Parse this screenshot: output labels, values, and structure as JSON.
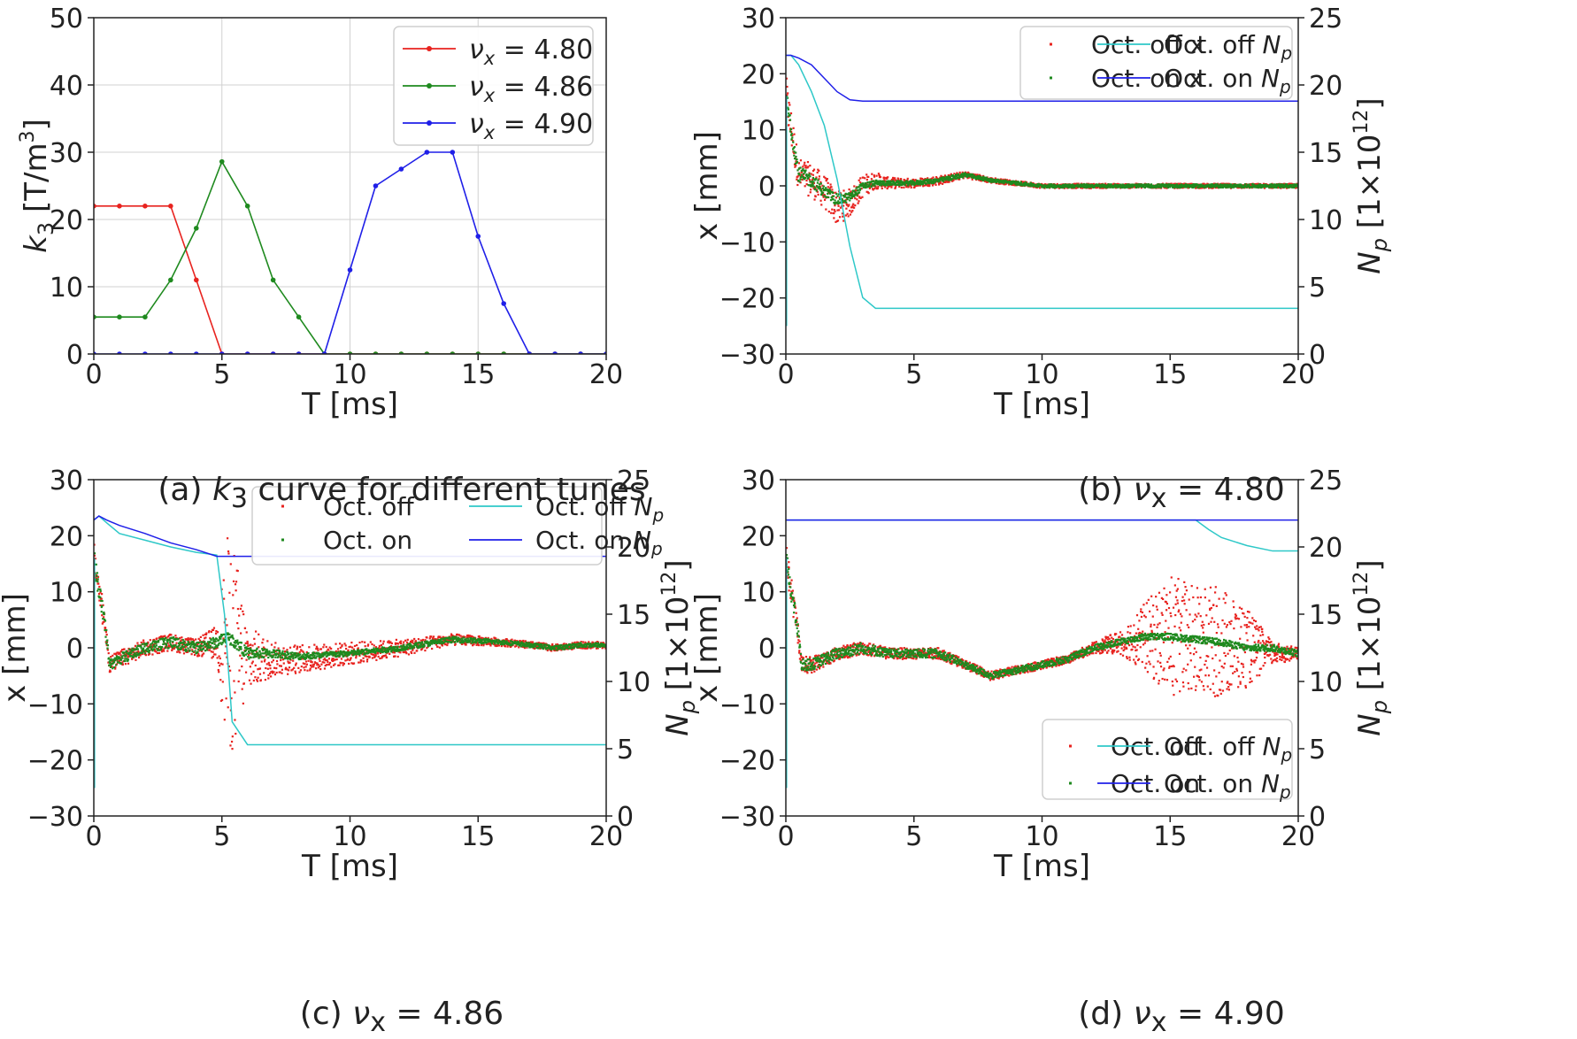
{
  "chart_data": [
    {
      "type": "line",
      "caption": {
        "prefix": "(a) ",
        "sym": "k",
        "sub": "3",
        "rest": " curve for different tunes"
      },
      "xlabel": "T [ms]",
      "ylabel": {
        "sym": "k",
        "sub": "3",
        "unit": " [T/m",
        "sup": "3",
        "close": "]"
      },
      "xlim": [
        0,
        20
      ],
      "ylim": [
        0,
        50
      ],
      "xticks": [
        0,
        5,
        10,
        15,
        20
      ],
      "yticks": [
        0,
        10,
        20,
        30,
        40,
        50
      ],
      "grid": true,
      "legend": "top-right",
      "series": [
        {
          "name": "ν_x = 4.80",
          "color": "#e8231f",
          "x": [
            0,
            1,
            2,
            3,
            4,
            5,
            6,
            7,
            8,
            9,
            10,
            11,
            12,
            13,
            14,
            15,
            16,
            17,
            18,
            19,
            20
          ],
          "y": [
            22,
            22,
            22,
            22,
            11,
            0,
            0,
            0,
            0,
            0,
            0,
            0,
            0,
            0,
            0,
            0,
            0,
            0,
            0,
            0,
            0
          ]
        },
        {
          "name": "ν_x = 4.86",
          "color": "#1f8a1f",
          "x": [
            0,
            1,
            2,
            3,
            4,
            5,
            6,
            7,
            8,
            9,
            10,
            11,
            12,
            13,
            14,
            15,
            16,
            17,
            18,
            19,
            20
          ],
          "y": [
            5.5,
            5.5,
            5.5,
            11,
            18.7,
            28.6,
            22,
            11,
            5.5,
            0,
            0,
            0,
            0,
            0,
            0,
            0,
            0,
            0,
            0,
            0,
            0
          ]
        },
        {
          "name": "ν_x = 4.90",
          "color": "#1f1fe8",
          "x": [
            0,
            1,
            2,
            3,
            4,
            5,
            6,
            7,
            8,
            9,
            10,
            11,
            12,
            13,
            14,
            15,
            16,
            17,
            18,
            19,
            20
          ],
          "y": [
            0,
            0,
            0,
            0,
            0,
            0,
            0,
            0,
            0,
            0,
            12.5,
            25,
            27.5,
            30,
            30,
            17.5,
            7.5,
            0,
            0,
            0,
            0
          ]
        }
      ]
    },
    {
      "type": "scatter+line",
      "caption": {
        "prefix": "(b) ",
        "sym": "ν",
        "sub": "x",
        "rest": " = 4.80"
      },
      "xlabel": "T [ms]",
      "ylabel": "x [mm]",
      "ylabel2": {
        "sym": "N",
        "sub": "p",
        "unit": " [1×10",
        "sup": "12",
        "close": "]"
      },
      "xlim": [
        0,
        20
      ],
      "ylim": [
        -30,
        30
      ],
      "y2lim": [
        0,
        25
      ],
      "xticks": [
        0,
        5,
        10,
        15,
        20
      ],
      "yticks": [
        -30,
        -20,
        -10,
        0,
        10,
        20,
        30
      ],
      "y2ticks": [
        0,
        5,
        10,
        15,
        20,
        25
      ],
      "legend": "top-right",
      "legend_entries": [
        {
          "label": "Oct. off x",
          "kind": "dot",
          "color": "#e8231f"
        },
        {
          "label": "Oct. on x",
          "kind": "dot",
          "color": "#1f8a1f"
        },
        {
          "label": "Oct. off ",
          "sub_label": "p",
          "kind": "line",
          "color": "#2ec8c8"
        },
        {
          "label": "Oct. on ",
          "sub_label": "p",
          "kind": "line",
          "color": "#1f1fe8"
        }
      ],
      "x_off": {
        "t": [
          0,
          0.5,
          1,
          1.5,
          2,
          2.5,
          3,
          3.5,
          4,
          5,
          6,
          7,
          8,
          9,
          10,
          12,
          14,
          16,
          18,
          20
        ],
        "x": [
          16,
          2,
          1,
          -1,
          -4,
          -3,
          0,
          1,
          0.5,
          0.5,
          1,
          2,
          1,
          0.5,
          0,
          0,
          0,
          0,
          0,
          0
        ],
        "spread": [
          4,
          3,
          3,
          3,
          3,
          2.5,
          2,
          1.5,
          1,
          0.8,
          0.8,
          0.6,
          0.5,
          0.4,
          0.4,
          0.4,
          0.4,
          0.4,
          0.4,
          0.4
        ]
      },
      "x_on": {
        "t": [
          0,
          0.5,
          1,
          1.5,
          2,
          2.5,
          3,
          3.5,
          4,
          5,
          6,
          7,
          8,
          9,
          10,
          12,
          14,
          16,
          18,
          20
        ],
        "x": [
          16,
          2,
          1,
          -1,
          -2.5,
          -2,
          0,
          0.5,
          0.5,
          0.5,
          1,
          2,
          1,
          0.5,
          0,
          0,
          0,
          0,
          0,
          0
        ],
        "spread": [
          2,
          1.5,
          1.2,
          1,
          1,
          0.8,
          0.6,
          0.5,
          0.4,
          0.4,
          0.4,
          0.4,
          0.3,
          0.3,
          0.3,
          0.3,
          0.3,
          0.3,
          0.3,
          0.3
        ]
      },
      "np_off": {
        "t": [
          0,
          0.2,
          0.5,
          1,
          1.5,
          2,
          2.5,
          3,
          3.5,
          20
        ],
        "n": [
          22.2,
          22.2,
          21.5,
          19.5,
          17,
          13,
          8,
          4.2,
          3.4,
          3.4
        ]
      },
      "np_on": {
        "t": [
          0,
          0.2,
          0.5,
          1,
          1.5,
          2,
          2.5,
          3,
          3.5,
          20
        ],
        "n": [
          22.2,
          22.2,
          22,
          21.5,
          20.5,
          19.5,
          18.9,
          18.8,
          18.8,
          18.8
        ]
      }
    },
    {
      "type": "scatter+line",
      "caption": {
        "prefix": "(c) ",
        "sym": "ν",
        "sub": "x",
        "rest": " = 4.86"
      },
      "xlabel": "T [ms]",
      "ylabel": "x [mm]",
      "ylabel2": {
        "sym": "N",
        "sub": "p",
        "unit": " [1×10",
        "sup": "12",
        "close": "]"
      },
      "xlim": [
        0,
        20
      ],
      "ylim": [
        -30,
        30
      ],
      "y2lim": [
        0,
        25
      ],
      "xticks": [
        0,
        5,
        10,
        15,
        20
      ],
      "yticks": [
        -30,
        -20,
        -10,
        0,
        10,
        20,
        30
      ],
      "y2ticks": [
        0,
        5,
        10,
        15,
        20,
        25
      ],
      "legend": "top-right",
      "legend_entries": [
        {
          "label": "Oct. off",
          "kind": "dot",
          "color": "#e8231f"
        },
        {
          "label": "Oct. on",
          "kind": "dot",
          "color": "#1f8a1f"
        },
        {
          "label": "Oct. off ",
          "sub_label": "p",
          "kind": "line",
          "color": "#2ec8c8"
        },
        {
          "label": "Oct. on ",
          "sub_label": "p",
          "kind": "line",
          "color": "#1f1fe8"
        }
      ],
      "x_off": {
        "t": [
          0,
          0.5,
          0.6,
          1,
          2,
          3,
          4,
          4.8,
          5.2,
          5.5,
          6,
          7,
          8,
          10,
          12,
          14,
          16,
          18,
          19,
          20
        ],
        "x": [
          16,
          2,
          -3,
          -2,
          0,
          1,
          0,
          1,
          0,
          0,
          -2,
          -2,
          -2,
          -1,
          0,
          1.5,
          1,
          0,
          0.5,
          0.5
        ],
        "spread": [
          3,
          2,
          1.5,
          1.5,
          1.5,
          1.5,
          1.5,
          3,
          20,
          18,
          6,
          3,
          2.5,
          2,
          1.5,
          1,
          0.7,
          0.6,
          0.6,
          0.6
        ]
      },
      "x_on": {
        "t": [
          0,
          0.5,
          0.6,
          1,
          2,
          3,
          4,
          4.8,
          5.2,
          5.5,
          6,
          7,
          8,
          10,
          12,
          14,
          16,
          18,
          19,
          20
        ],
        "x": [
          16,
          2,
          -3,
          -2,
          0,
          1,
          0,
          1,
          2,
          1,
          -1,
          -1,
          -1.5,
          -1,
          0,
          1.5,
          1,
          0,
          0.5,
          0.5
        ],
        "spread": [
          2,
          1.5,
          1,
          1,
          1,
          1,
          1,
          1,
          1,
          1,
          1,
          0.8,
          0.6,
          0.5,
          0.5,
          0.5,
          0.4,
          0.4,
          0.4,
          0.4
        ]
      },
      "np_off": {
        "t": [
          0,
          0.2,
          0.5,
          1,
          2,
          3,
          4,
          4.8,
          5.1,
          5.4,
          6,
          20
        ],
        "n": [
          22,
          22.3,
          21.8,
          21,
          20.5,
          20,
          19.6,
          19.4,
          15,
          7,
          5.3,
          5.3
        ]
      },
      "np_on": {
        "t": [
          0,
          0.2,
          0.5,
          1,
          2,
          3,
          4,
          4.8,
          5.2,
          20
        ],
        "n": [
          22,
          22.3,
          22,
          21.6,
          21,
          20.3,
          19.8,
          19.3,
          19.3,
          19.3
        ]
      }
    },
    {
      "type": "scatter+line",
      "caption": {
        "prefix": "(d) ",
        "sym": "ν",
        "sub": "x",
        "rest": " = 4.90"
      },
      "xlabel": "T [ms]",
      "ylabel": "x [mm]",
      "ylabel2": {
        "sym": "N",
        "sub": "p",
        "unit": " [1×10",
        "sup": "12",
        "close": "]"
      },
      "xlim": [
        0,
        20
      ],
      "ylim": [
        -30,
        30
      ],
      "y2lim": [
        0,
        25
      ],
      "xticks": [
        0,
        5,
        10,
        15,
        20
      ],
      "yticks": [
        -30,
        -20,
        -10,
        0,
        10,
        20,
        30
      ],
      "y2ticks": [
        0,
        5,
        10,
        15,
        20,
        25
      ],
      "legend": "bottom-right",
      "legend_entries": [
        {
          "label": "Oct. off",
          "kind": "dot",
          "color": "#e8231f"
        },
        {
          "label": "Oct. on",
          "kind": "dot",
          "color": "#1f8a1f"
        },
        {
          "label": "Oct. off ",
          "sub_label": "p",
          "kind": "line",
          "color": "#2ec8c8"
        },
        {
          "label": "Oct. on ",
          "sub_label": "p",
          "kind": "line",
          "color": "#1f1fe8"
        }
      ],
      "x_off": {
        "t": [
          0,
          0.5,
          0.6,
          1,
          2,
          3,
          4,
          5,
          6,
          7,
          8,
          9,
          10,
          11,
          12,
          13,
          14,
          15,
          16,
          17,
          18,
          19,
          20
        ],
        "x": [
          16,
          2,
          -3,
          -3,
          -1,
          0,
          -1,
          -1,
          -1,
          -3,
          -5,
          -4,
          -3,
          -2,
          0,
          1,
          2,
          2,
          1,
          1,
          0,
          -1,
          -1
        ],
        "spread": [
          3,
          2,
          1.5,
          1.5,
          1.2,
          1.2,
          1,
          1,
          1,
          0.8,
          0.8,
          0.8,
          0.8,
          0.8,
          1,
          2,
          6,
          11,
          10,
          10,
          7,
          2,
          1
        ]
      },
      "x_on": {
        "t": [
          0,
          0.5,
          0.6,
          1,
          2,
          3,
          4,
          5,
          6,
          7,
          8,
          9,
          10,
          11,
          12,
          13,
          14,
          15,
          16,
          17,
          18,
          19,
          20
        ],
        "x": [
          16,
          2,
          -3,
          -3,
          -1,
          0,
          -1,
          -1,
          -1,
          -3,
          -5,
          -4,
          -3,
          -2,
          0,
          1,
          2,
          2,
          1.5,
          1,
          0,
          0,
          -1
        ],
        "spread": [
          2,
          1.5,
          1,
          1,
          1,
          1,
          0.8,
          0.8,
          0.8,
          0.6,
          0.6,
          0.6,
          0.6,
          0.6,
          0.6,
          0.6,
          0.6,
          0.6,
          0.6,
          0.6,
          0.6,
          0.6,
          0.6
        ]
      },
      "np_off": {
        "t": [
          0,
          0.2,
          0.4,
          16,
          16.5,
          17,
          18,
          19,
          20
        ],
        "n": [
          22,
          22,
          22,
          22,
          21.3,
          20.7,
          20.1,
          19.7,
          19.7
        ]
      },
      "np_on": {
        "t": [
          0,
          0.2,
          0.4,
          20
        ],
        "n": [
          22,
          22,
          22,
          22
        ]
      }
    }
  ]
}
